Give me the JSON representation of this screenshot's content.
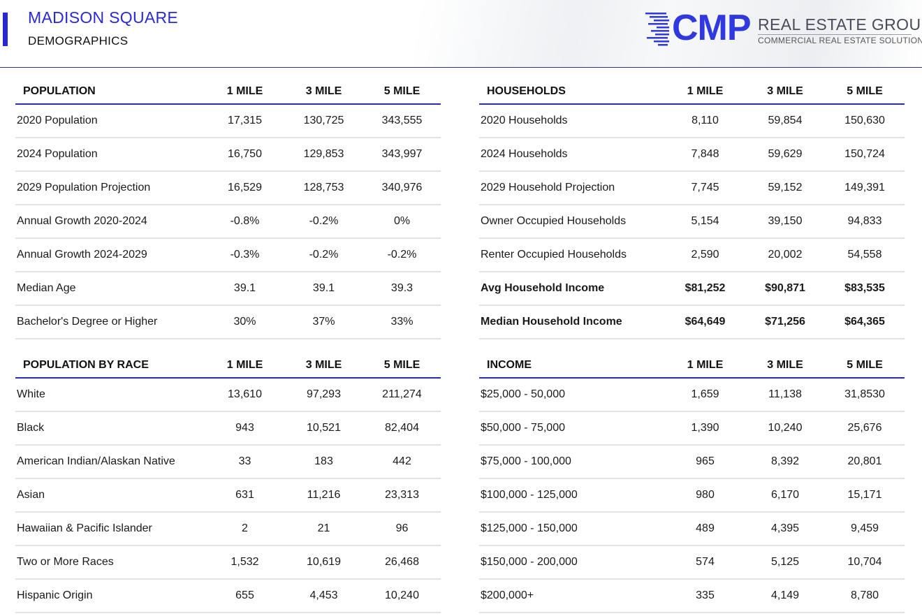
{
  "header": {
    "title": "MADISON SQUARE",
    "subtitle": "DEMOGRAPHICS",
    "logo": {
      "cmp": "CMP",
      "name": "REAL ESTATE GROUP",
      "tagline": "COMMERCIAL REAL ESTATE SOLUTIONS",
      "color": "#3038e0"
    }
  },
  "population": {
    "headers": [
      "POPULATION",
      "1 MILE",
      "3 MILE",
      "5 MILE"
    ],
    "rows": [
      [
        "2020 Population",
        "17,315",
        "130,725",
        "343,555"
      ],
      [
        "2024 Population",
        "16,750",
        "129,853",
        "343,997"
      ],
      [
        "2029 Population Projection",
        "16,529",
        "128,753",
        "340,976"
      ],
      [
        "Annual Growth 2020-2024",
        "-0.8%",
        "-0.2%",
        "0%"
      ],
      [
        "Annual Growth 2024-2029",
        "-0.3%",
        "-0.2%",
        "-0.2%"
      ],
      [
        "Median Age",
        "39.1",
        "39.1",
        "39.3"
      ],
      [
        "Bachelor's Degree or Higher",
        "30%",
        "37%",
        "33%"
      ]
    ]
  },
  "households": {
    "headers": [
      "HOUSEHOLDS",
      "1 MILE",
      "3 MILE",
      "5 MILE"
    ],
    "rows": [
      [
        "2020 Households",
        "8,110",
        "59,854",
        "150,630"
      ],
      [
        "2024 Households",
        "7,848",
        "59,629",
        "150,724"
      ],
      [
        "2029 Household Projection",
        "7,745",
        "59,152",
        "149,391"
      ],
      [
        "Owner Occupied Households",
        "5,154",
        "39,150",
        "94,833"
      ],
      [
        "Renter Occupied Households",
        "2,590",
        "20,002",
        "54,558"
      ],
      [
        "Avg Household Income",
        "$81,252",
        "$90,871",
        "$83,535"
      ],
      [
        "Median Household Income",
        "$64,649",
        "$71,256",
        "$64,365"
      ]
    ]
  },
  "race": {
    "headers": [
      "POPULATION BY RACE",
      "1 MILE",
      "3 MILE",
      "5 MILE"
    ],
    "rows": [
      [
        "White",
        "13,610",
        "97,293",
        "211,274"
      ],
      [
        "Black",
        "943",
        "10,521",
        "82,404"
      ],
      [
        "American Indian/Alaskan Native",
        "33",
        "183",
        "442"
      ],
      [
        "Asian",
        "631",
        "11,216",
        "23,313"
      ],
      [
        "Hawaiian & Pacific Islander",
        "2",
        "21",
        "96"
      ],
      [
        "Two or More Races",
        "1,532",
        "10,619",
        "26,468"
      ],
      [
        "Hispanic Origin",
        "655",
        "4,453",
        "10,240"
      ]
    ]
  },
  "income": {
    "headers": [
      "INCOME",
      "1 MILE",
      "3 MILE",
      "5 MILE"
    ],
    "rows": [
      [
        "$25,000 - 50,000",
        "1,659",
        "11,138",
        "31,8530"
      ],
      [
        "$50,000 - 75,000",
        "1,390",
        "10,240",
        "25,676"
      ],
      [
        "$75,000 - 100,000",
        "965",
        "8,392",
        "20,801"
      ],
      [
        "$100,000 - 125,000",
        "980",
        "6,170",
        "15,171"
      ],
      [
        "$125,000 - 150,000",
        "489",
        "4,395",
        "9,459"
      ],
      [
        "$150,000 - 200,000",
        "574",
        "5,125",
        "10,704"
      ],
      [
        "$200,000+",
        "335",
        "4,149",
        "8,780"
      ]
    ]
  }
}
